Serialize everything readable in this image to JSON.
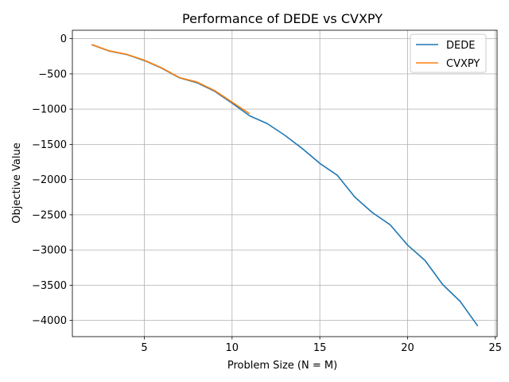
{
  "chart_data": {
    "type": "line",
    "title": "Performance of DEDE vs CVXPY",
    "xlabel": "Problem Size (N = M)",
    "ylabel": "Objective Value",
    "xlim": [
      0.9,
      25.1
    ],
    "ylim": [
      -4230,
      120
    ],
    "xticks": [
      5,
      10,
      15,
      20,
      25
    ],
    "yticks": [
      0,
      -500,
      -1000,
      -1500,
      -2000,
      -2500,
      -3000,
      -3500,
      -4000
    ],
    "grid": true,
    "legend_position": "top-right",
    "series": [
      {
        "name": "DEDE",
        "color": "#1f77b4",
        "x": [
          2,
          3,
          4,
          5,
          6,
          7,
          8,
          9,
          10,
          11,
          12,
          13,
          14,
          15,
          16,
          17,
          18,
          19,
          20,
          21,
          22,
          23,
          24
        ],
        "y": [
          -85,
          -175,
          -225,
          -310,
          -420,
          -555,
          -625,
          -745,
          -915,
          -1095,
          -1205,
          -1370,
          -1560,
          -1770,
          -1940,
          -2250,
          -2470,
          -2640,
          -2930,
          -3150,
          -3490,
          -3730,
          -4080
        ]
      },
      {
        "name": "CVXPY",
        "color": "#ff7f0e",
        "x": [
          2,
          3,
          4,
          5,
          6,
          7,
          8,
          9,
          10,
          11
        ],
        "y": [
          -82,
          -172,
          -222,
          -305,
          -415,
          -552,
          -615,
          -735,
          -900,
          -1065
        ]
      }
    ]
  }
}
